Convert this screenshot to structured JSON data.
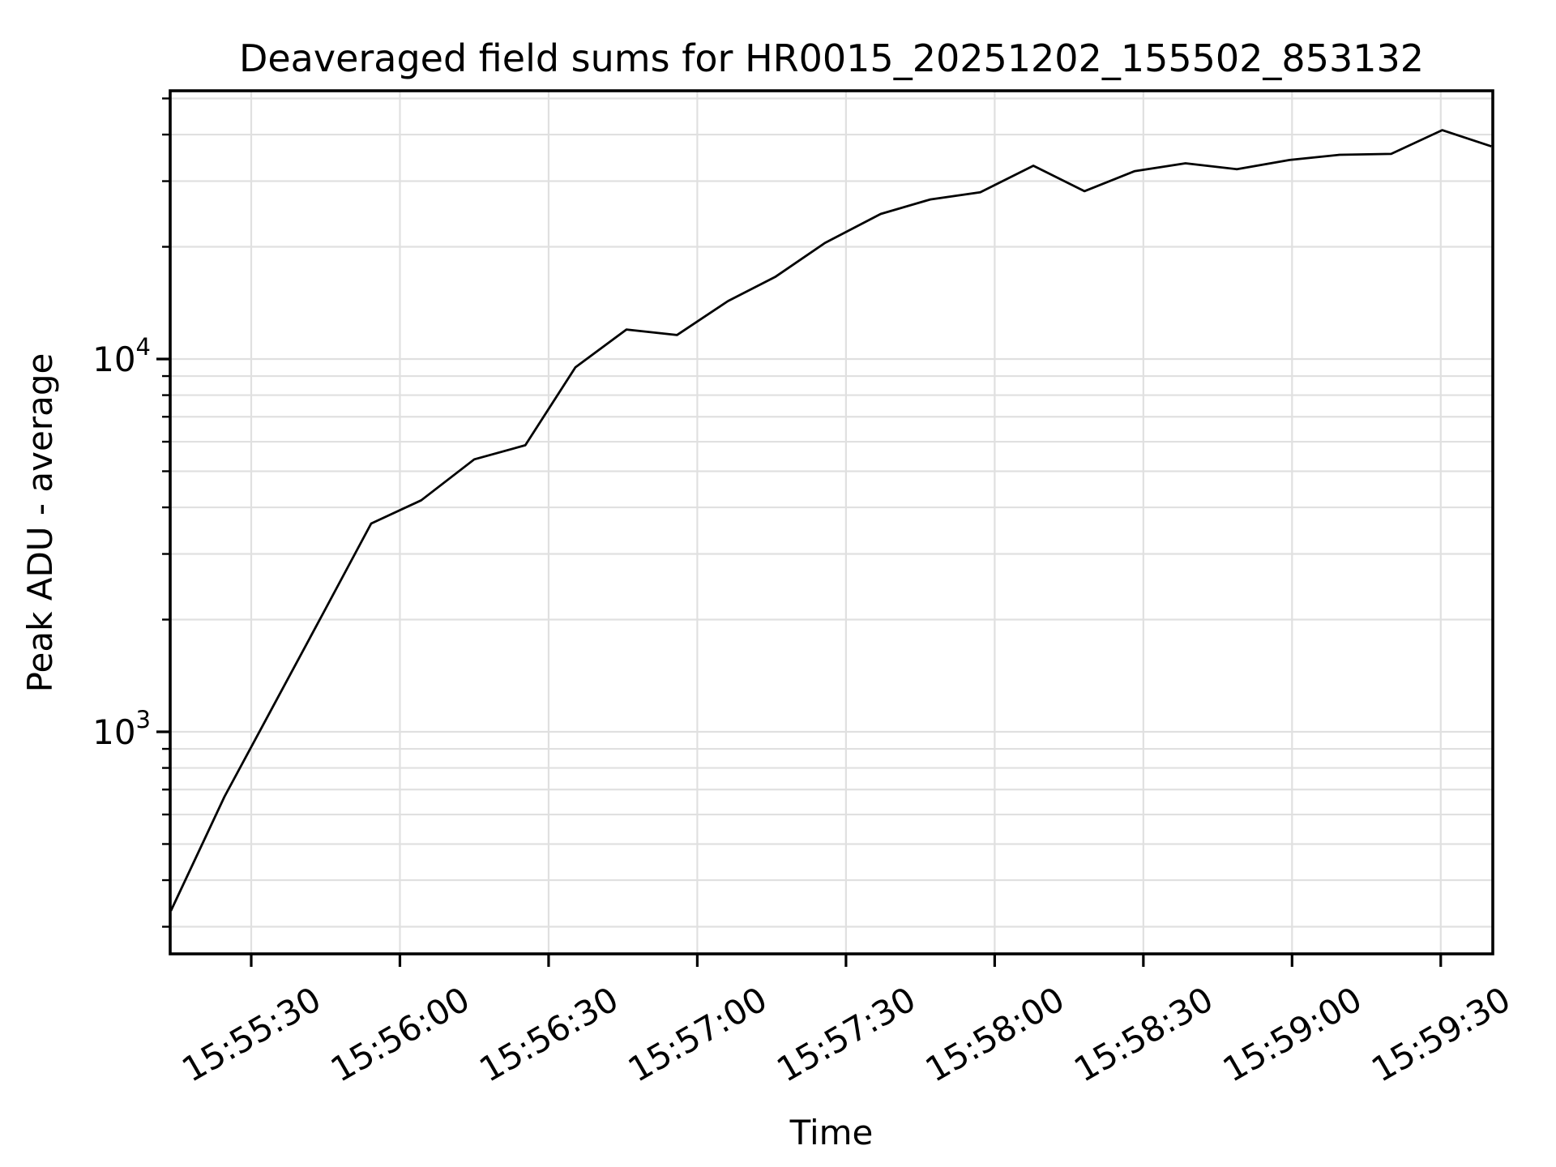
{
  "figure": {
    "background": "#ffffff",
    "text_color": "#000000",
    "grid_color": "#e0e0e0",
    "spine_color": "#000000"
  },
  "chart_data": {
    "type": "line",
    "title": "Deaveraged field sums for HR0015_20251202_155502_853132",
    "xlabel": "Time",
    "ylabel": "Peak ADU - average",
    "yscale": "log",
    "grid": "both",
    "legend": "none",
    "x_unit": "seconds relative to 15:55:30",
    "x_axis_range": [
      -16.35,
      250.5
    ],
    "y_axis_range": [
      253.7,
      52430
    ],
    "x_ticks": [
      {
        "t": 0,
        "label": "15:55:30"
      },
      {
        "t": 30,
        "label": "15:56:00"
      },
      {
        "t": 60,
        "label": "15:56:30"
      },
      {
        "t": 90,
        "label": "15:57:00"
      },
      {
        "t": 120,
        "label": "15:57:30"
      },
      {
        "t": 150,
        "label": "15:58:00"
      },
      {
        "t": 180,
        "label": "15:58:30"
      },
      {
        "t": 210,
        "label": "15:59:00"
      },
      {
        "t": 240,
        "label": "15:59:30"
      }
    ],
    "y_major_ticks": [
      {
        "value": 1000,
        "base": "10",
        "exponent": "3"
      },
      {
        "value": 10000,
        "base": "10",
        "exponent": "4"
      }
    ],
    "series": [
      {
        "name": "deaveraged field sum",
        "color": "#000000",
        "points": [
          [
            -16.2,
            331
          ],
          [
            -5.4,
            670
          ],
          [
            4.1,
            1150
          ],
          [
            14.1,
            2030
          ],
          [
            24.2,
            3620
          ],
          [
            34.3,
            4180
          ],
          [
            45.0,
            5380
          ],
          [
            55.3,
            5870
          ],
          [
            65.4,
            9500
          ],
          [
            75.7,
            12000
          ],
          [
            85.9,
            11600
          ],
          [
            96.2,
            14300
          ],
          [
            105.7,
            16600
          ],
          [
            115.8,
            20500
          ],
          [
            127.0,
            24500
          ],
          [
            137.0,
            26800
          ],
          [
            147.1,
            28000
          ],
          [
            157.8,
            33000
          ],
          [
            168.1,
            28200
          ],
          [
            178.2,
            31900
          ],
          [
            188.5,
            33500
          ],
          [
            198.9,
            32300
          ],
          [
            209.5,
            34200
          ],
          [
            219.6,
            35300
          ],
          [
            230.0,
            35500
          ],
          [
            240.3,
            41100
          ],
          [
            250.2,
            37200
          ]
        ]
      }
    ]
  }
}
